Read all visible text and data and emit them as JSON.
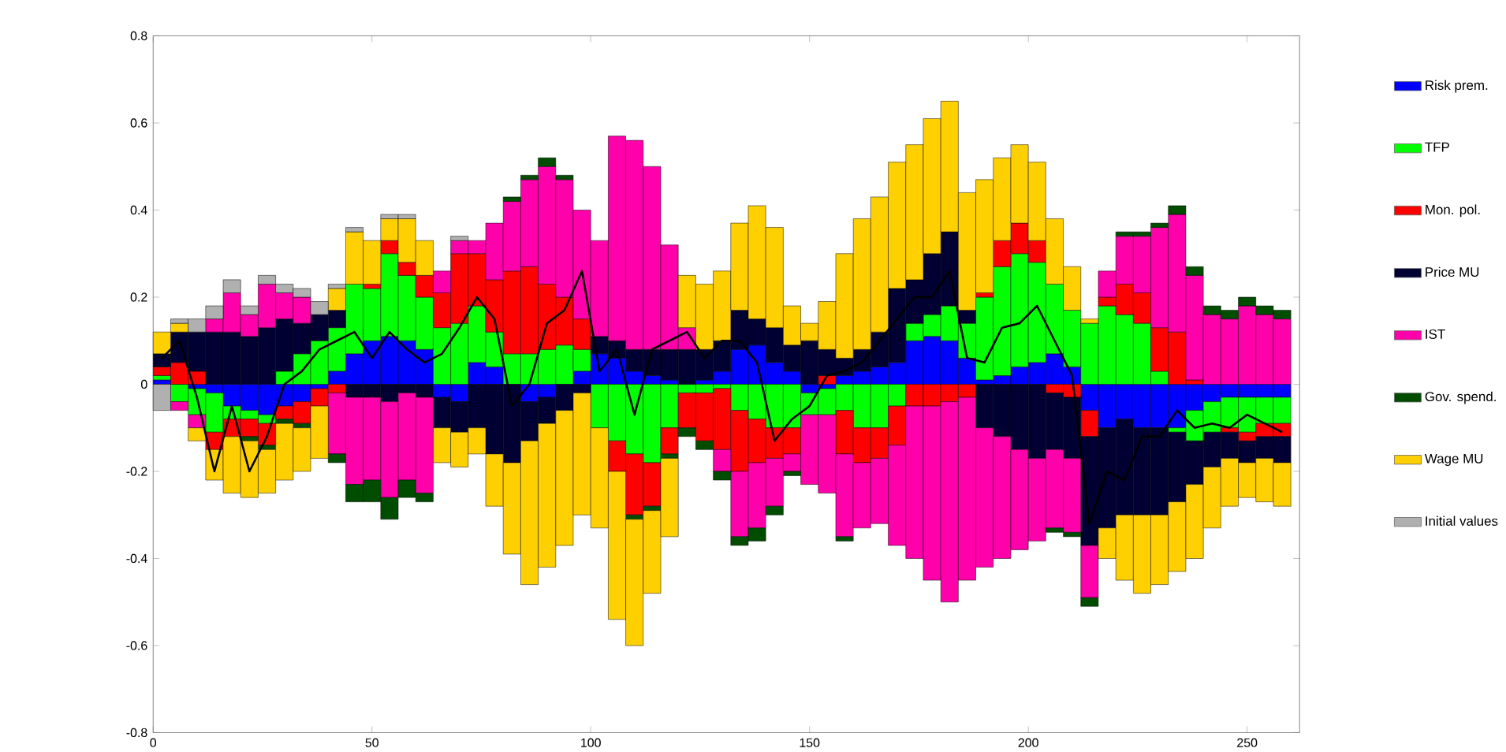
{
  "chart_data": {
    "type": "bar",
    "stacked": true,
    "legend": "right",
    "x": [
      2,
      6,
      10,
      14,
      18,
      22,
      26,
      30,
      34,
      38,
      42,
      46,
      50,
      54,
      58,
      62,
      66,
      70,
      74,
      78,
      82,
      86,
      90,
      94,
      98,
      102,
      106,
      110,
      114,
      118,
      122,
      126,
      130,
      134,
      138,
      142,
      146,
      150,
      154,
      158,
      162,
      166,
      170,
      174,
      178,
      182,
      186,
      190,
      194,
      198,
      202,
      206,
      210,
      214,
      218,
      222,
      226,
      230,
      234,
      238,
      242,
      246,
      250,
      254,
      258
    ],
    "xlim": [
      0,
      262
    ],
    "ylim": [
      -0.8,
      0.8
    ],
    "xticks": [
      0,
      50,
      100,
      150,
      200,
      250
    ],
    "yticks": [
      -0.8,
      -0.6,
      -0.4,
      -0.2,
      0,
      0.2,
      0.4,
      0.6,
      0.8
    ],
    "series": [
      {
        "name": "Risk prem.",
        "color": "#0000ff",
        "values": [
          0.01,
          0,
          -0.01,
          -0.02,
          -0.05,
          -0.06,
          -0.07,
          -0.05,
          -0.04,
          -0.01,
          0.03,
          0.07,
          0.1,
          0.11,
          0.1,
          0.08,
          -0.03,
          -0.04,
          0.05,
          0.04,
          0,
          -0.04,
          -0.03,
          0,
          0.03,
          0.07,
          0.06,
          0.03,
          0.02,
          0.01,
          0,
          0.01,
          0.03,
          0.08,
          0.09,
          0.05,
          0.03,
          -0.02,
          -0.01,
          0.02,
          0.03,
          0.04,
          0.05,
          0.1,
          0.11,
          0.1,
          0.06,
          0.01,
          0.02,
          0.04,
          0.05,
          0.07,
          0.04,
          -0.06,
          -0.1,
          -0.08,
          -0.1,
          -0.1,
          -0.1,
          -0.06,
          -0.04,
          -0.03,
          -0.03,
          -0.03,
          -0.03
        ]
      },
      {
        "name": "TFP",
        "color": "#00ff00",
        "values": [
          0.01,
          -0.04,
          -0.06,
          -0.09,
          -0.03,
          -0.02,
          -0.02,
          0.03,
          0.07,
          0.1,
          0.1,
          0.16,
          0.12,
          0.19,
          0.15,
          0.12,
          0.13,
          0.14,
          0.13,
          0.08,
          0.07,
          0.07,
          0.08,
          0.09,
          0.05,
          -0.1,
          -0.13,
          -0.16,
          -0.18,
          -0.1,
          -0.02,
          -0.02,
          -0.01,
          -0.06,
          -0.08,
          -0.1,
          -0.1,
          -0.05,
          -0.06,
          -0.06,
          -0.1,
          -0.1,
          -0.05,
          0.04,
          0.05,
          0.08,
          0.08,
          0.19,
          0.25,
          0.26,
          0.23,
          0.16,
          0.13,
          0.14,
          0.18,
          0.16,
          0.14,
          0.03,
          -0.01,
          -0.07,
          -0.07,
          -0.07,
          -0.08,
          -0.06,
          -0.06
        ]
      },
      {
        "name": "Mon. pol.",
        "color": "#ff0000",
        "values": [
          0.02,
          0.05,
          0.03,
          -0.04,
          -0.04,
          -0.04,
          -0.05,
          -0.03,
          -0.05,
          -0.04,
          -0.02,
          0,
          0.01,
          0.03,
          0.03,
          0.05,
          0.08,
          0.16,
          0.12,
          0.12,
          0.19,
          0.2,
          0.15,
          0.11,
          0.07,
          0,
          -0.07,
          -0.14,
          -0.1,
          -0.06,
          -0.08,
          -0.11,
          -0.14,
          -0.14,
          -0.1,
          -0.07,
          -0.06,
          0,
          0.02,
          -0.1,
          -0.08,
          -0.07,
          -0.09,
          -0.05,
          -0.05,
          -0.04,
          -0.03,
          0.01,
          0.06,
          0.07,
          0.05,
          -0.02,
          -0.03,
          -0.06,
          0.02,
          0.07,
          0.07,
          0.1,
          0.12,
          0.01,
          0,
          -0.01,
          -0.02,
          -0.03,
          -0.03
        ]
      },
      {
        "name": "Price MU",
        "color": "#000033",
        "values": [
          0.03,
          0.07,
          0.09,
          0.12,
          0.12,
          0.11,
          0.13,
          0.12,
          0.07,
          0.06,
          0.04,
          -0.03,
          -0.03,
          -0.04,
          -0.02,
          -0.03,
          -0.07,
          -0.07,
          -0.1,
          -0.16,
          -0.18,
          -0.09,
          -0.06,
          -0.06,
          -0.02,
          0.04,
          0.04,
          0.05,
          0.06,
          0.07,
          0.08,
          0.07,
          0.07,
          0.09,
          0.06,
          0.08,
          0.06,
          0.1,
          0.06,
          0.04,
          0.05,
          0.08,
          0.17,
          0.1,
          0.14,
          0.17,
          0.03,
          -0.1,
          -0.12,
          -0.15,
          -0.17,
          -0.13,
          -0.14,
          -0.25,
          -0.23,
          -0.22,
          -0.2,
          -0.2,
          -0.16,
          -0.1,
          -0.08,
          -0.06,
          -0.05,
          -0.05,
          -0.06
        ]
      },
      {
        "name": "IST",
        "color": "#ff00aa",
        "values": [
          0,
          -0.02,
          -0.03,
          0.03,
          0.09,
          0.05,
          0.1,
          0.06,
          0.06,
          0,
          -0.14,
          -0.2,
          -0.19,
          -0.22,
          -0.2,
          -0.22,
          0.05,
          0.03,
          0.03,
          0.13,
          0.16,
          0.2,
          0.27,
          0.27,
          0.25,
          0.22,
          0.47,
          0.48,
          0.42,
          0.24,
          0.05,
          0,
          -0.05,
          -0.15,
          -0.15,
          -0.11,
          -0.04,
          -0.16,
          -0.18,
          -0.19,
          -0.15,
          -0.15,
          -0.23,
          -0.35,
          -0.4,
          -0.46,
          -0.42,
          -0.32,
          -0.28,
          -0.23,
          -0.19,
          -0.18,
          -0.17,
          -0.12,
          0.06,
          0.11,
          0.13,
          0.23,
          0.27,
          0.24,
          0.16,
          0.15,
          0.18,
          0.16,
          0.15
        ]
      },
      {
        "name": "Gov. spend.",
        "color": "#004d00",
        "values": [
          0,
          0,
          0,
          0,
          0,
          -0.01,
          -0.01,
          -0.01,
          -0.01,
          0,
          -0.02,
          -0.04,
          -0.05,
          -0.05,
          -0.04,
          -0.02,
          0,
          0,
          0,
          0,
          0.01,
          0.01,
          0.02,
          0.01,
          0,
          0,
          0,
          -0.01,
          -0.01,
          -0.01,
          -0.02,
          -0.02,
          -0.02,
          -0.02,
          -0.03,
          -0.02,
          -0.01,
          0,
          0,
          -0.01,
          0,
          0,
          0,
          0,
          0,
          0,
          0,
          0,
          0,
          0,
          0,
          -0.01,
          -0.01,
          -0.02,
          0,
          0.01,
          0.01,
          0.01,
          0.02,
          0.02,
          0.02,
          0.02,
          0.02,
          0.02,
          0.02
        ]
      },
      {
        "name": "Wage MU",
        "color": "#ffd000",
        "values": [
          0.05,
          0.02,
          -0.03,
          -0.07,
          -0.13,
          -0.13,
          -0.1,
          -0.13,
          -0.1,
          -0.12,
          0.05,
          0.12,
          0.1,
          0.05,
          0.1,
          0.08,
          -0.08,
          -0.08,
          -0.06,
          -0.12,
          -0.21,
          -0.33,
          -0.33,
          -0.31,
          -0.28,
          -0.23,
          -0.34,
          -0.29,
          -0.19,
          -0.18,
          0.12,
          0.15,
          0.16,
          0.2,
          0.26,
          0.23,
          0.09,
          0.04,
          0.11,
          0.24,
          0.3,
          0.31,
          0.29,
          0.31,
          0.31,
          0.3,
          0.27,
          0.26,
          0.19,
          0.18,
          0.18,
          0.15,
          0.1,
          0.01,
          -0.07,
          -0.15,
          -0.18,
          -0.16,
          -0.16,
          -0.17,
          -0.14,
          -0.11,
          -0.08,
          -0.1,
          -0.1
        ]
      },
      {
        "name": "Initial values",
        "color": "#b0b0b0",
        "values": [
          -0.06,
          0.01,
          0.03,
          0.03,
          0.03,
          0.02,
          0.02,
          0.02,
          0.02,
          0.03,
          0.01,
          0.01,
          0,
          0.01,
          0.01,
          0,
          0,
          0.01,
          0,
          0,
          0,
          0,
          0,
          0,
          0,
          0,
          0,
          0,
          0,
          0,
          0,
          0,
          0,
          0,
          0,
          0,
          0,
          0,
          0,
          0,
          0,
          0,
          0,
          0,
          0,
          0,
          0,
          0,
          0,
          0,
          0,
          0,
          0,
          0,
          0,
          0,
          0,
          0,
          0,
          0,
          0,
          0,
          0,
          0,
          0
        ]
      },
      {
        "type": "line",
        "color": "#000000",
        "values": [
          0.06,
          0.1,
          -0.03,
          -0.2,
          -0.05,
          -0.2,
          -0.12,
          0,
          0.03,
          0.08,
          0.1,
          0.12,
          0.06,
          0.12,
          0.08,
          0.05,
          0.07,
          0.13,
          0.2,
          0.15,
          -0.05,
          0,
          0.14,
          0.17,
          0.26,
          0.03,
          0.08,
          -0.07,
          0.08,
          0.1,
          0.12,
          0.06,
          0.1,
          0.1,
          0.05,
          -0.13,
          -0.08,
          -0.05,
          0.02,
          0.03,
          0.05,
          0.1,
          0.15,
          0.2,
          0.2,
          0.26,
          0.06,
          0.05,
          0.13,
          0.14,
          0.18,
          0.1,
          0.02,
          -0.32,
          -0.2,
          -0.22,
          -0.12,
          -0.12,
          -0.06,
          -0.1,
          -0.09,
          -0.1,
          -0.07,
          -0.09,
          -0.11
        ]
      }
    ]
  }
}
